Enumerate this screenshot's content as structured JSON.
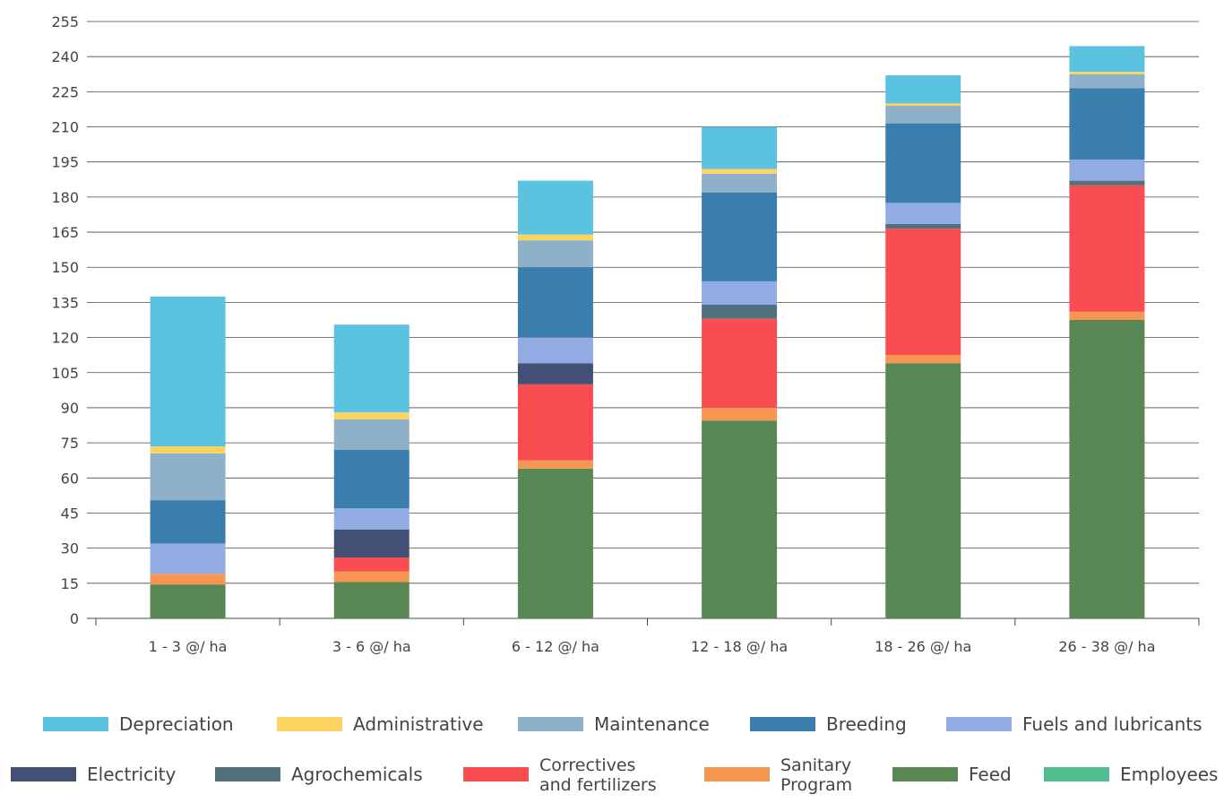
{
  "chart_data": {
    "type": "bar",
    "stacked": true,
    "title": "",
    "xlabel": "",
    "ylabel": "",
    "ylim": [
      0,
      255
    ],
    "ytick_step": 15,
    "grid": true,
    "legend_position": "bottom",
    "categories": [
      "1 - 3 @/ ha",
      "3 - 6 @/ ha",
      "6 - 12 @/ ha",
      "12 - 18 @/ ha",
      "18 - 26 @/ ha",
      "26 - 38 @/ ha"
    ],
    "series": [
      {
        "name": "Employees",
        "color": "#4fc08d",
        "values": [
          0,
          0,
          0,
          0,
          0,
          0
        ]
      },
      {
        "name": "Feed",
        "color": "#588754",
        "values": [
          14.5,
          15.5,
          64,
          84.5,
          109,
          127.5
        ]
      },
      {
        "name": "Sanitary Program",
        "color": "#f79552",
        "values": [
          4.5,
          4.5,
          3.5,
          5.5,
          3.5,
          3.5
        ]
      },
      {
        "name": "Correctives and fertilizers",
        "color": "#f94d51",
        "values": [
          0,
          6,
          32.5,
          38,
          54,
          54
        ]
      },
      {
        "name": "Electricity",
        "color": "#444f75",
        "values": [
          0,
          12,
          9,
          0,
          0,
          0
        ]
      },
      {
        "name": "Agrochemicals",
        "color": "#52717d",
        "values": [
          0,
          0,
          0,
          6,
          2,
          2
        ]
      },
      {
        "name": "Fuels and lubricants",
        "color": "#92abe2",
        "values": [
          13,
          9,
          11,
          10,
          9,
          9
        ]
      },
      {
        "name": "Breeding",
        "color": "#3a7eae",
        "values": [
          18.5,
          25,
          30,
          38,
          34,
          30.5
        ]
      },
      {
        "name": "Maintenance",
        "color": "#8eb0c8",
        "values": [
          20,
          13,
          11.5,
          8,
          7.5,
          6
        ]
      },
      {
        "name": "Administrative",
        "color": "#fdd462",
        "values": [
          3,
          3,
          2.5,
          2,
          1,
          1
        ]
      },
      {
        "name": "Depreciation",
        "color": "#5bc2df",
        "values": [
          64,
          37.5,
          23,
          18,
          12,
          11
        ]
      }
    ],
    "legend_rows": [
      [
        {
          "label": "Depreciation",
          "color": "#5bc2df"
        },
        {
          "label": "Administrative",
          "color": "#fdd462"
        },
        {
          "label": "Maintenance",
          "color": "#8eb0c8"
        },
        {
          "label": "Breeding",
          "color": "#3a7eae"
        },
        {
          "label": "Fuels and lubricants",
          "color": "#92abe2"
        }
      ],
      [
        {
          "label": "Electricity",
          "color": "#444f75"
        },
        {
          "label": "Agrochemicals",
          "color": "#52717d"
        },
        {
          "label": "Correctives\nand fertilizers",
          "color": "#f94d51"
        },
        {
          "label": "Sanitary\nProgram",
          "color": "#f79552"
        },
        {
          "label": "Feed",
          "color": "#588754"
        },
        {
          "label": "Employees",
          "color": "#4fc08d"
        }
      ]
    ]
  }
}
